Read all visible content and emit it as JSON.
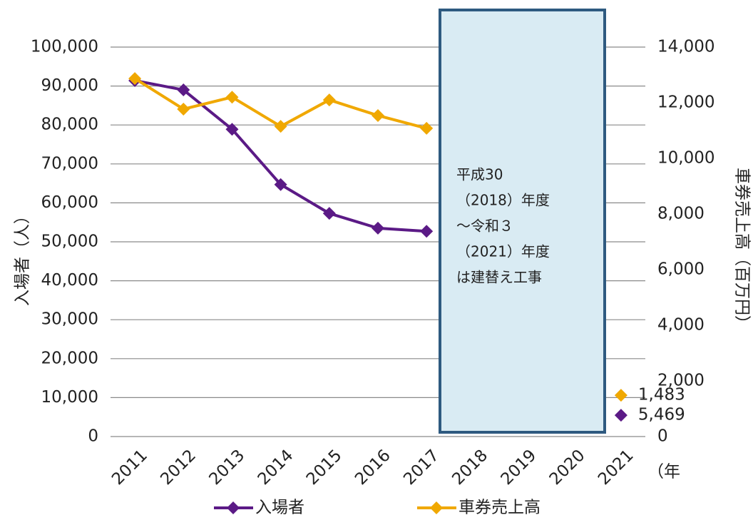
{
  "chart_data": {
    "type": "line",
    "categories": [
      "2011",
      "2012",
      "2013",
      "2014",
      "2015",
      "2016",
      "2017",
      "2018",
      "2019",
      "2020",
      "2021"
    ],
    "series": [
      {
        "name": "入場者",
        "color": "#5b1a86",
        "axis": "y",
        "values": [
          91400,
          89000,
          78900,
          64700,
          57300,
          53500,
          52700,
          null,
          null,
          null,
          5469
        ],
        "value_labels": [
          null,
          null,
          null,
          null,
          null,
          null,
          null,
          null,
          null,
          null,
          "5,469"
        ]
      },
      {
        "name": "車券売上高",
        "color": "#f0a800",
        "axis": "y2",
        "values": [
          12870,
          11770,
          12200,
          11150,
          12100,
          11540,
          11080,
          null,
          null,
          null,
          1483
        ],
        "value_labels": [
          null,
          null,
          null,
          null,
          null,
          null,
          null,
          null,
          null,
          null,
          "1,483"
        ]
      }
    ],
    "ylabel": "入場者（人）",
    "y2label": "車券売上高（百万円）",
    "xlabel": "（年",
    "ylim": [
      0,
      100000
    ],
    "yticks": [
      0,
      {
        "value": 10000,
        "label": "10,000"
      },
      {
        "value": 20000,
        "label": "20,000"
      },
      {
        "value": 30000,
        "label": "30,000"
      },
      {
        "value": 40000,
        "label": "40,000"
      },
      {
        "value": 50000,
        "label": "50,000"
      },
      {
        "value": 60000,
        "label": "60,000"
      },
      {
        "value": 70000,
        "label": "70,000"
      },
      {
        "value": 80000,
        "label": "80,000"
      },
      {
        "value": 90000,
        "label": "90,000"
      },
      {
        "value": 100000,
        "label": "100,000"
      }
    ],
    "y2lim": [
      0,
      14000
    ],
    "y2ticks": [
      0,
      {
        "value": 2000,
        "label": "2,000"
      },
      {
        "value": 4000,
        "label": "4,000"
      },
      {
        "value": 6000,
        "label": "6,000"
      },
      {
        "value": 8000,
        "label": "8,000"
      },
      {
        "value": 10000,
        "label": "10,000"
      },
      {
        "value": 12000,
        "label": "12,000"
      },
      {
        "value": 14000,
        "label": "14,000"
      }
    ],
    "grid": true,
    "legend": "bottom",
    "annotation": {
      "lines": [
        "平成30",
        "（2018）年度",
        "～令和３",
        "（2021）年度",
        "は建替え工事"
      ]
    }
  }
}
